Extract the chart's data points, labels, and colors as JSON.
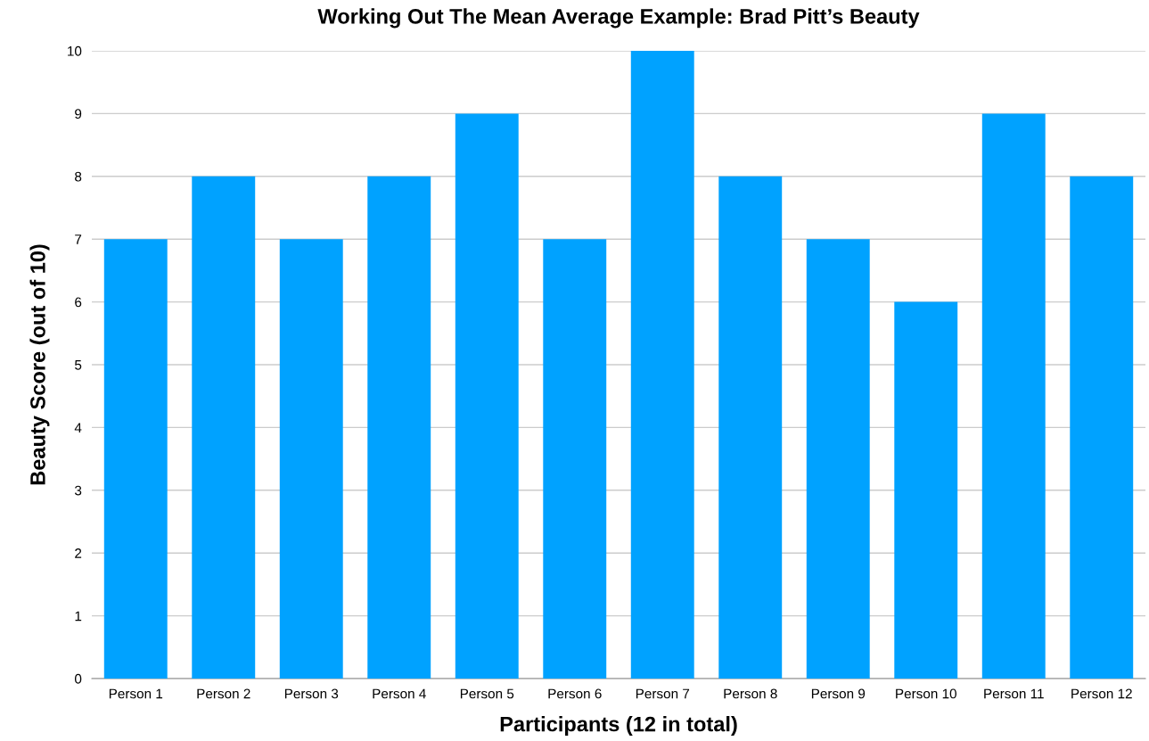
{
  "chart_data": {
    "type": "bar",
    "title": "Working Out The Mean Average Example: Brad Pitt’s Beauty",
    "xlabel": "Participants (12 in total)",
    "ylabel": "Beauty Score (out of 10)",
    "categories": [
      "Person 1",
      "Person 2",
      "Person 3",
      "Person 4",
      "Person 5",
      "Person 6",
      "Person 7",
      "Person 8",
      "Person 9",
      "Person 10",
      "Person 11",
      "Person 12"
    ],
    "values": [
      7,
      8,
      7,
      8,
      9,
      7,
      10,
      8,
      7,
      6,
      9,
      8
    ],
    "color": "#00a2ff",
    "ylim": [
      0,
      10
    ],
    "yticks": [
      0,
      1,
      2,
      3,
      4,
      5,
      6,
      7,
      8,
      9,
      10
    ],
    "grid": "y"
  }
}
